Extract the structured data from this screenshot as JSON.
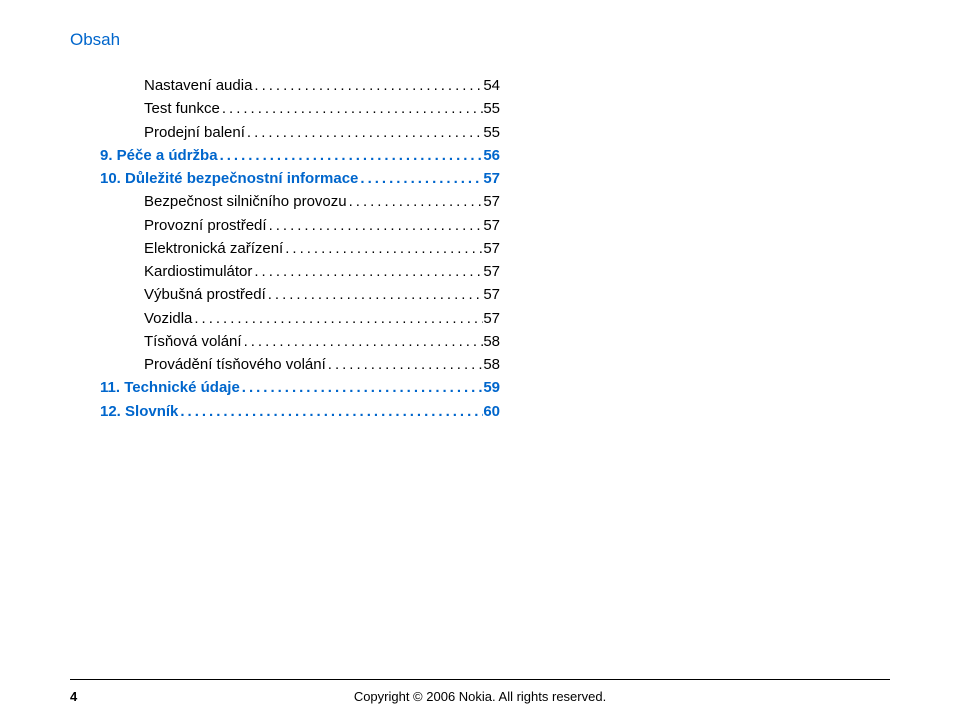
{
  "header": "Obsah",
  "toc": [
    {
      "indent": true,
      "label": "Nastavení audia",
      "page": "54",
      "blue": false
    },
    {
      "indent": true,
      "label": "Test funkce",
      "page": "55",
      "blue": false
    },
    {
      "indent": true,
      "label": "Prodejní balení",
      "page": "55",
      "blue": false
    },
    {
      "indent": false,
      "num": "9.",
      "label": "Péče a údržba",
      "page": "56",
      "blue": true
    },
    {
      "indent": false,
      "num": "10.",
      "label": "Důležité bezpečnostní informace",
      "page": "57",
      "blue": true
    },
    {
      "indent": true,
      "label": "Bezpečnost silničního provozu",
      "page": "57",
      "blue": false
    },
    {
      "indent": true,
      "label": "Provozní prostředí",
      "page": "57",
      "blue": false
    },
    {
      "indent": true,
      "label": "Elektronická zařízení",
      "page": "57",
      "blue": false
    },
    {
      "indent": true,
      "label": "Kardiostimulátor",
      "page": "57",
      "blue": false
    },
    {
      "indent": true,
      "label": "Výbušná prostředí",
      "page": "57",
      "blue": false
    },
    {
      "indent": true,
      "label": "Vozidla",
      "page": "57",
      "blue": false
    },
    {
      "indent": true,
      "label": "Tísňová volání",
      "page": "58",
      "blue": false
    },
    {
      "indent": true,
      "label": "Provádění tísňového volání",
      "page": "58",
      "blue": false
    },
    {
      "indent": false,
      "num": "11.",
      "label": "Technické údaje",
      "page": "59",
      "blue": true
    },
    {
      "indent": false,
      "num": "12.",
      "label": "Slovník",
      "page": "60",
      "blue": true
    }
  ],
  "footer": {
    "pageNumber": "4",
    "copyright": "Copyright © 2006 Nokia. All rights reserved."
  },
  "colors": {
    "blue": "#0066cc",
    "black": "#000000",
    "background": "#ffffff"
  }
}
